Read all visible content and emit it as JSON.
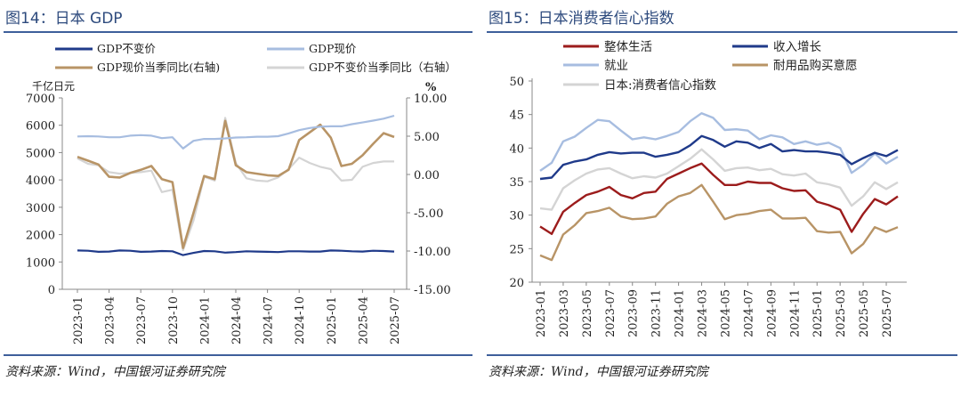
{
  "figure14": {
    "title": "图14：日本 GDP",
    "source": "资料来源：Wind，中国银河证券研究院",
    "chart_data": {
      "type": "line",
      "left_unit": "千亿日元",
      "right_unit": "%",
      "left_ylim": [
        0,
        7000
      ],
      "left_ticks": [
        "0",
        "1000",
        "2000",
        "3000",
        "4000",
        "5000",
        "6000",
        "7000"
      ],
      "right_ylim": [
        -15,
        10
      ],
      "right_ticks": [
        "10.00",
        "5.00",
        "0.00",
        "-5.00",
        "-10.00",
        "-15.00"
      ],
      "x_ticks": [
        "2023-01",
        "2023-04",
        "2023-07",
        "2023-10",
        "2024-01",
        "2024-04",
        "2024-07",
        "2024-10",
        "2025-01",
        "2025-04",
        "2025-07"
      ],
      "series": [
        {
          "name": "GDP不变价",
          "axis": "left",
          "color": "#1f3a8a",
          "values": [
            1420,
            1410,
            1370,
            1380,
            1420,
            1410,
            1370,
            1380,
            1400,
            1390,
            1250,
            1330,
            1400,
            1390,
            1340,
            1360,
            1390,
            1380,
            1370,
            1360,
            1390,
            1390,
            1380,
            1380,
            1420,
            1410,
            1390,
            1380,
            1410,
            1400,
            1380
          ]
        },
        {
          "name": "GDP现价",
          "axis": "left",
          "color": "#a7bde0",
          "values": [
            5590,
            5600,
            5590,
            5560,
            5560,
            5620,
            5640,
            5620,
            5530,
            5560,
            5150,
            5430,
            5500,
            5500,
            5520,
            5550,
            5560,
            5580,
            5580,
            5600,
            5700,
            5820,
            5900,
            5950,
            5960,
            5960,
            6040,
            6100,
            6170,
            6240,
            6350
          ]
        },
        {
          "name": "GDP现价当季同比(右轴)",
          "axis": "right",
          "color": "#b89466",
          "values": [
            2.3,
            1.8,
            1.3,
            -0.3,
            -0.4,
            0.2,
            0.6,
            1.1,
            -0.6,
            -1.0,
            -9.6,
            -5.0,
            -0.2,
            -0.6,
            7.0,
            1.2,
            0.3,
            0.1,
            -0.1,
            -0.2,
            0.6,
            4.5,
            5.5,
            6.5,
            4.8,
            1.1,
            1.4,
            2.5,
            4.0,
            5.4,
            4.9
          ]
        },
        {
          "name": "GDP不变价当季同比（右轴）",
          "axis": "right",
          "color": "#d4d4d4",
          "values": [
            2.1,
            1.4,
            1.2,
            0.3,
            0.1,
            0.2,
            0.3,
            0.5,
            -2.3,
            -2.0,
            -9.9,
            -6.0,
            -0.3,
            -0.8,
            7.4,
            1.5,
            -0.5,
            -0.8,
            -0.9,
            -0.4,
            0.7,
            2.2,
            1.5,
            1.0,
            0.7,
            -0.8,
            -0.7,
            1.0,
            1.5,
            1.7,
            1.7
          ]
        }
      ]
    }
  },
  "figure15": {
    "title": "图15：日本消费者信心指数",
    "source": "资料来源：Wind，中国银河证券研究院",
    "chart_data": {
      "type": "line",
      "ylim": [
        20,
        50
      ],
      "y_ticks": [
        "20",
        "25",
        "30",
        "35",
        "40",
        "45",
        "50"
      ],
      "x_ticks": [
        "2023-01",
        "2023-03",
        "2023-05",
        "2023-07",
        "2023-09",
        "2023-11",
        "2024-01",
        "2024-03",
        "2024-05",
        "2024-07",
        "2024-09",
        "2024-11",
        "2025-01",
        "2025-03",
        "2025-05",
        "2025-07"
      ],
      "series": [
        {
          "name": "整体生活",
          "color": "#9c1c1c",
          "values": [
            28.3,
            27.2,
            30.5,
            31.8,
            33.0,
            33.5,
            34.2,
            33.0,
            32.5,
            33.3,
            33.5,
            35.4,
            36.2,
            37.0,
            37.7,
            36.0,
            34.5,
            34.5,
            35.0,
            34.8,
            34.8,
            34.0,
            33.6,
            33.7,
            32.0,
            31.5,
            30.8,
            27.5,
            30.2,
            32.4,
            31.6,
            32.8
          ]
        },
        {
          "name": "收入增长",
          "color": "#1f3a8a",
          "values": [
            35.4,
            35.6,
            37.5,
            38.0,
            38.3,
            39.0,
            39.4,
            39.2,
            39.3,
            39.3,
            38.7,
            39.0,
            39.4,
            40.4,
            41.8,
            41.2,
            40.2,
            41.0,
            40.8,
            40.0,
            40.6,
            39.5,
            39.7,
            39.5,
            39.5,
            39.3,
            39.0,
            37.6,
            38.5,
            39.3,
            38.8,
            39.7
          ]
        },
        {
          "name": "就业",
          "color": "#a7bde0",
          "values": [
            36.6,
            37.8,
            41.0,
            41.7,
            43.0,
            44.2,
            44.0,
            42.6,
            41.3,
            41.6,
            41.3,
            41.8,
            42.4,
            44.0,
            45.2,
            44.5,
            42.7,
            42.8,
            42.6,
            41.3,
            41.9,
            41.6,
            40.6,
            41.0,
            40.5,
            40.8,
            40.0,
            36.3,
            37.5,
            39.2,
            37.7,
            38.7
          ]
        },
        {
          "name": "耐用品购买意愿",
          "color": "#b89466",
          "values": [
            24.0,
            23.3,
            27.1,
            28.5,
            30.3,
            30.6,
            31.1,
            29.8,
            29.4,
            29.5,
            29.8,
            31.7,
            32.8,
            33.3,
            34.5,
            32.0,
            29.4,
            30.0,
            30.2,
            30.6,
            30.8,
            29.5,
            29.5,
            29.6,
            27.6,
            27.4,
            27.5,
            24.3,
            25.7,
            28.2,
            27.5,
            28.2
          ]
        },
        {
          "name": "日本:消费者信心指数",
          "color": "#d4d4d4",
          "values": [
            31.0,
            30.8,
            34.0,
            35.2,
            36.2,
            36.8,
            37.0,
            36.2,
            35.5,
            35.8,
            35.6,
            36.2,
            37.3,
            38.4,
            39.8,
            38.3,
            36.6,
            37.0,
            37.1,
            36.7,
            36.9,
            36.1,
            35.9,
            36.2,
            34.9,
            34.6,
            34.1,
            31.4,
            32.8,
            34.9,
            33.9,
            34.9
          ]
        }
      ]
    }
  }
}
